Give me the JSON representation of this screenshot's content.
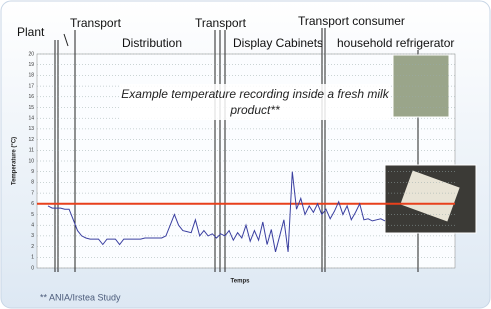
{
  "chart_data": {
    "type": "line",
    "phases": [
      "Plant",
      "Transport",
      "Distribution",
      "Transport",
      "Display Cabinets",
      "Transport consumer",
      "household refrigerator"
    ],
    "note": "Example temperature recording inside a fresh milk product**",
    "y_label": "Temperature (°C)",
    "x_label": "Temps",
    "source": "** ANIA/Irstea Study",
    "values": [
      5.8,
      5.6,
      5.6,
      5.6,
      5.5,
      5.5,
      4.5,
      3.5,
      3.0,
      2.8,
      2.7,
      2.7,
      2.7,
      2.2,
      2.7,
      2.7,
      2.7,
      2.2,
      2.7,
      2.7,
      2.7,
      2.7,
      2.7,
      2.8,
      2.8,
      2.8,
      2.8,
      2.8,
      3.0,
      4.0,
      5.0,
      4.0,
      3.5,
      3.4,
      3.3,
      4.5,
      3.0,
      3.5,
      3.0,
      3.2,
      2.8,
      3.2,
      3.0,
      3.5,
      2.6,
      3.3,
      2.8,
      4.0,
      2.5,
      3.5,
      2.6,
      4.3,
      2.2,
      3.6,
      1.5,
      3.0,
      4.5,
      1.5,
      9.0,
      5.5,
      6.5,
      5.0,
      5.8,
      5.2,
      6.0,
      5.0,
      5.5,
      4.6,
      5.3,
      6.2,
      5.0,
      5.8,
      4.5,
      5.2,
      6.0,
      4.5,
      4.6,
      4.4,
      4.5,
      4.6,
      4.4
    ],
    "color": "#3a3fa0",
    "threshold": 6,
    "threshold_color": "#e8401c",
    "ylim": [
      0,
      20
    ],
    "yticks": [
      0,
      1,
      2,
      3,
      4,
      5,
      6,
      7,
      8,
      9,
      10,
      11,
      12,
      13,
      14,
      15,
      16,
      17,
      18,
      19,
      20
    ],
    "grid": true
  }
}
